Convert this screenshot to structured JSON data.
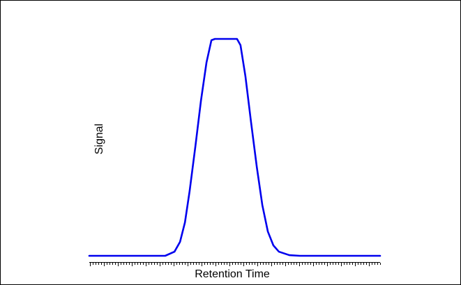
{
  "chart_data": {
    "type": "line",
    "x_label": "Retention Time",
    "y_label": "Signal",
    "x": [
      0,
      26.1,
      29.3,
      31.2,
      32.9,
      34.5,
      36.5,
      38.4,
      40.3,
      42.0,
      43.2,
      50.8,
      52.0,
      53.7,
      55.6,
      57.6,
      59.5,
      61.4,
      63.3,
      65.2,
      68.8,
      72.4,
      100
    ],
    "values": [
      0,
      0,
      1.9,
      6.4,
      15.4,
      29.8,
      50.6,
      71.5,
      89.1,
      99.4,
      100,
      100,
      97.1,
      82.7,
      61.9,
      41.0,
      23.4,
      11.2,
      4.8,
      1.9,
      0.3,
      0,
      0
    ],
    "color": "#0000ee",
    "xlim": [
      0,
      100
    ],
    "ylim": [
      0,
      100
    ]
  }
}
